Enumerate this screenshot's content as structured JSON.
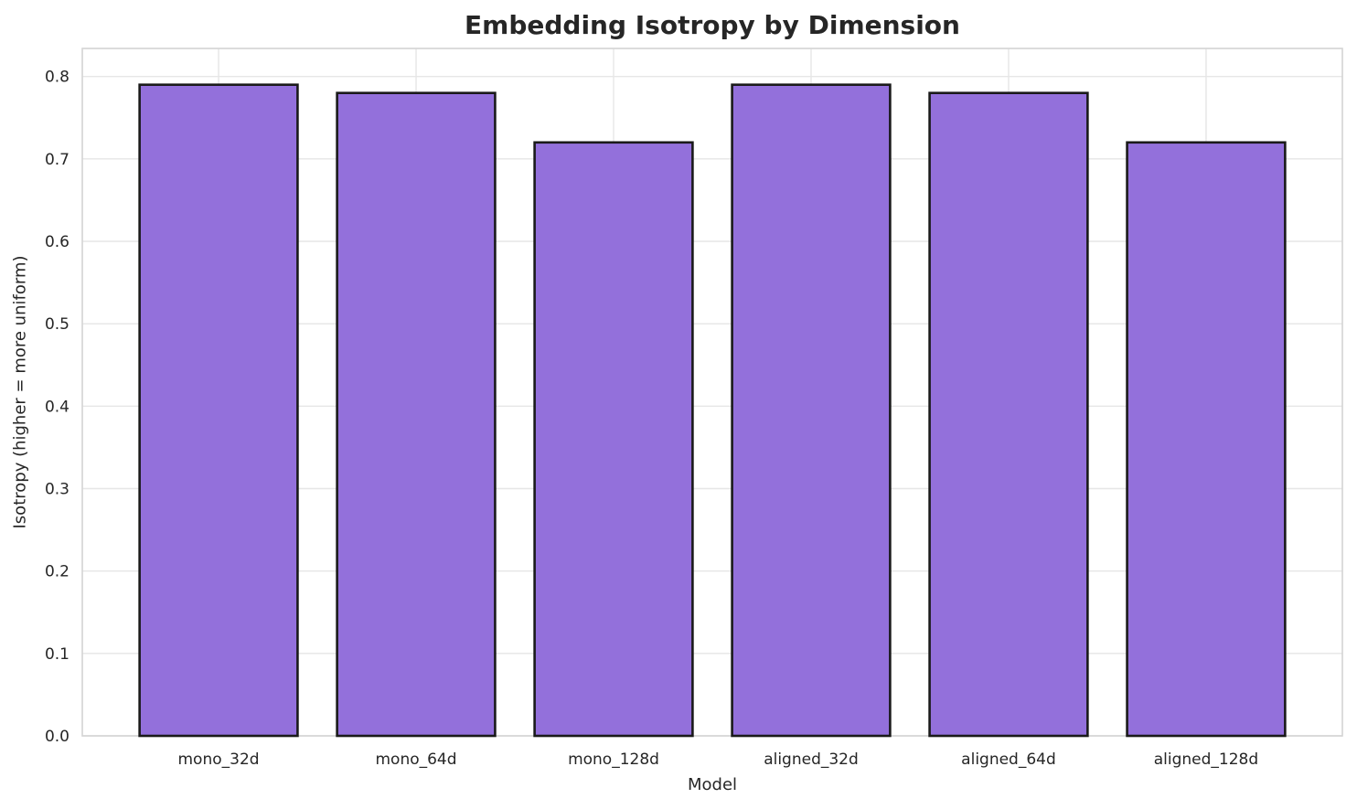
{
  "chart_data": {
    "type": "bar",
    "title": "Embedding Isotropy by Dimension",
    "xlabel": "Model",
    "ylabel": "Isotropy (higher = more uniform)",
    "categories": [
      "mono_32d",
      "mono_64d",
      "mono_128d",
      "aligned_32d",
      "aligned_64d",
      "aligned_128d"
    ],
    "values": [
      0.79,
      0.78,
      0.72,
      0.79,
      0.78,
      0.72
    ],
    "ylim": [
      0,
      0.834
    ],
    "yticks": [
      0,
      0.1,
      0.2,
      0.3,
      0.4,
      0.5,
      0.6,
      0.7,
      0.8
    ],
    "grid": true,
    "legend": "none",
    "bar_width_fraction": 0.8,
    "colors": {
      "bar_fill": "#9370DB",
      "bar_edge": "#1a1a1a",
      "grid": "#e6e6e6",
      "spine": "#d4d4d4",
      "text": "#262626",
      "background": "#ffffff"
    }
  }
}
